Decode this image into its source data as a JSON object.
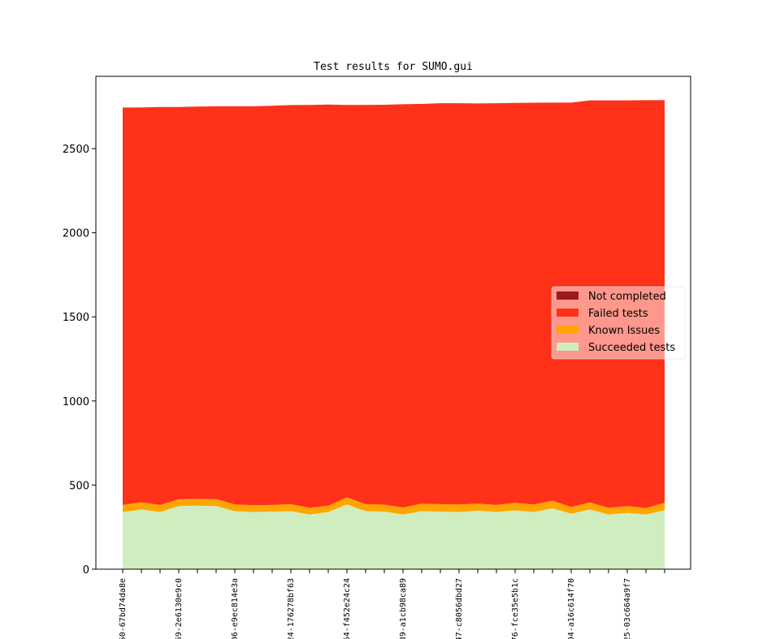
{
  "chart_data": {
    "type": "area",
    "stacked": true,
    "title": "Test results for SUMO.gui",
    "xlabel": "",
    "ylabel": "",
    "ylim": [
      0,
      2930
    ],
    "yticks": [
      0,
      500,
      1000,
      1500,
      2000,
      2500
    ],
    "grid": false,
    "legend_position": "center-right",
    "x_tick_labels": [
      "50-67bd74da8e",
      "69-2e6130e9c0",
      "06-e9ec814e3a",
      "24-176278bf63",
      "64-f452e24c24",
      "89-a1cb98ca89",
      "47-c8056dbd27",
      "76-fce35e5b1c",
      "04-a16c614f70",
      "25-03c664a9f7"
    ],
    "x": [
      0,
      1,
      2,
      3,
      4,
      5,
      6,
      7,
      8,
      9,
      10,
      11,
      12,
      13,
      14,
      15,
      16,
      17,
      18,
      19,
      20,
      21,
      22,
      23,
      24,
      25,
      26,
      27,
      28,
      29
    ],
    "series": [
      {
        "name": "Succeeded tests",
        "color": "#d0edc0",
        "values": [
          340,
          355,
          340,
          375,
          378,
          375,
          345,
          340,
          342,
          345,
          325,
          340,
          385,
          345,
          342,
          325,
          345,
          342,
          340,
          348,
          340,
          350,
          340,
          362,
          330,
          355,
          325,
          335,
          325,
          350
        ]
      },
      {
        "name": "Known Issues",
        "color": "#ffa500",
        "values": [
          42,
          43,
          42,
          40,
          40,
          42,
          40,
          40,
          40,
          42,
          40,
          38,
          42,
          42,
          42,
          42,
          45,
          45,
          45,
          42,
          42,
          45,
          45,
          45,
          40,
          42,
          40,
          40,
          38,
          45
        ]
      },
      {
        "name": "Failed tests",
        "color": "#ff3118",
        "values": [
          2363,
          2347,
          2366,
          2333,
          2332,
          2335,
          2367,
          2372,
          2373,
          2372,
          2395,
          2384,
          2333,
          2373,
          2377,
          2397,
          2376,
          2383,
          2385,
          2379,
          2388,
          2377,
          2388,
          2367,
          2404,
          2390,
          2422,
          2412,
          2425,
          2393
        ]
      },
      {
        "name": "Not completed",
        "color": "#9a1b1b",
        "values": [
          0,
          0,
          0,
          0,
          0,
          0,
          0,
          0,
          0,
          0,
          0,
          0,
          0,
          0,
          0,
          0,
          0,
          0,
          0,
          0,
          0,
          0,
          0,
          0,
          0,
          0,
          0,
          0,
          0,
          0
        ]
      }
    ]
  }
}
